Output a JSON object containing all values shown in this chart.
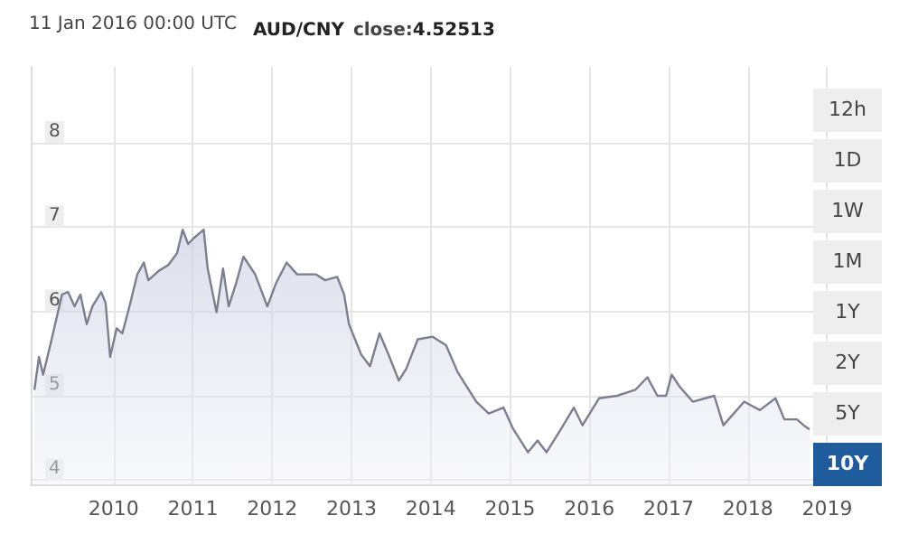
{
  "chart_data": {
    "type": "area",
    "title": "AUD/CNY close:4.52513",
    "annotations": [
      "11 Jan 2016 00:00 UTC",
      "12h",
      "1D",
      "1W",
      "1M",
      "1Y",
      "2Y",
      "5Y",
      "10Y"
    ],
    "series": [
      {
        "color": "#7b7f8f",
        "x": [
          "2009-01-01",
          "2009-01-22",
          "2009-02-10",
          "2009-03-15",
          "2009-05-08",
          "2009-06-05",
          "2009-07-05",
          "2009-08-01",
          "2009-08-30",
          "2009-09-25",
          "2009-11-05",
          "2009-11-25",
          "2009-12-16",
          "2010-01-15",
          "2010-02-10",
          "2010-03-15",
          "2010-04-20",
          "2010-05-20",
          "2010-06-10",
          "2010-07-27",
          "2010-09-10",
          "2010-10-20",
          "2010-11-15",
          "2010-12-10",
          "2011-01-05",
          "2011-02-20",
          "2011-03-10",
          "2011-04-20",
          "2011-05-20",
          "2011-06-15",
          "2011-07-20",
          "2011-08-22",
          "2011-10-15",
          "2011-12-10",
          "2012-01-20",
          "2012-03-08",
          "2012-04-25",
          "2012-06-10",
          "2012-07-20",
          "2012-09-01",
          "2012-10-27",
          "2012-11-28",
          "2012-12-20",
          "2013-02-14",
          "2013-03-27",
          "2013-05-10",
          "2013-06-20",
          "2013-08-07",
          "2013-09-10",
          "2013-11-02",
          "2014-01-10",
          "2014-03-12",
          "2014-05-05",
          "2014-07-30",
          "2014-09-25",
          "2014-12-02",
          "2015-01-15",
          "2015-03-25",
          "2015-05-08",
          "2015-06-18",
          "2015-08-25",
          "2015-10-22",
          "2015-12-01",
          "2016-02-15",
          "2016-05-08",
          "2016-07-31",
          "2016-09-25",
          "2016-11-10",
          "2016-12-20",
          "2017-01-15",
          "2017-02-20",
          "2017-04-22",
          "2017-07-30",
          "2017-09-10",
          "2017-12-15",
          "2018-02-25",
          "2018-05-08",
          "2018-06-18",
          "2018-08-15",
          "2018-09-15",
          "2018-10-12"
        ],
        "values": [
          5.07,
          5.46,
          5.25,
          5.6,
          6.2,
          6.23,
          6.06,
          6.2,
          5.85,
          6.06,
          6.23,
          6.1,
          5.46,
          5.8,
          5.74,
          6.06,
          6.44,
          6.58,
          6.37,
          6.48,
          6.55,
          6.69,
          6.97,
          6.8,
          6.87,
          6.97,
          6.51,
          5.99,
          6.51,
          6.06,
          6.34,
          6.65,
          6.44,
          6.06,
          6.34,
          6.58,
          6.44,
          6.44,
          6.44,
          6.37,
          6.41,
          6.2,
          5.85,
          5.49,
          5.35,
          5.74,
          5.49,
          5.18,
          5.32,
          5.67,
          5.7,
          5.6,
          5.28,
          4.93,
          4.79,
          4.86,
          4.61,
          4.33,
          4.47,
          4.33,
          4.61,
          4.86,
          4.65,
          4.97,
          5.0,
          5.07,
          5.22,
          5.0,
          5.0,
          5.25,
          5.11,
          4.93,
          5.0,
          4.65,
          4.93,
          4.83,
          4.97,
          4.72,
          4.72,
          4.65,
          4.6
        ]
      }
    ],
    "xlim": [
      "2008-12-15",
      "2019-01-20"
    ],
    "xticks": [
      {
        "value": "2010-01-01",
        "label": "2010"
      },
      {
        "value": "2011-01-01",
        "label": "2011"
      },
      {
        "value": "2012-01-01",
        "label": "2012"
      },
      {
        "value": "2013-01-01",
        "label": "2013"
      },
      {
        "value": "2014-01-01",
        "label": "2014"
      },
      {
        "value": "2015-01-01",
        "label": "2015"
      },
      {
        "value": "2016-01-01",
        "label": "2016"
      },
      {
        "value": "2017-01-01",
        "label": "2017"
      },
      {
        "value": "2018-01-01",
        "label": "2018"
      },
      {
        "value": "2019-01-01",
        "label": "2019"
      }
    ],
    "ylim": [
      3.95,
      8.9
    ],
    "yticks": [
      4,
      5,
      6,
      7,
      8
    ],
    "grid": true,
    "marker": "none",
    "line_style": "solid"
  }
}
